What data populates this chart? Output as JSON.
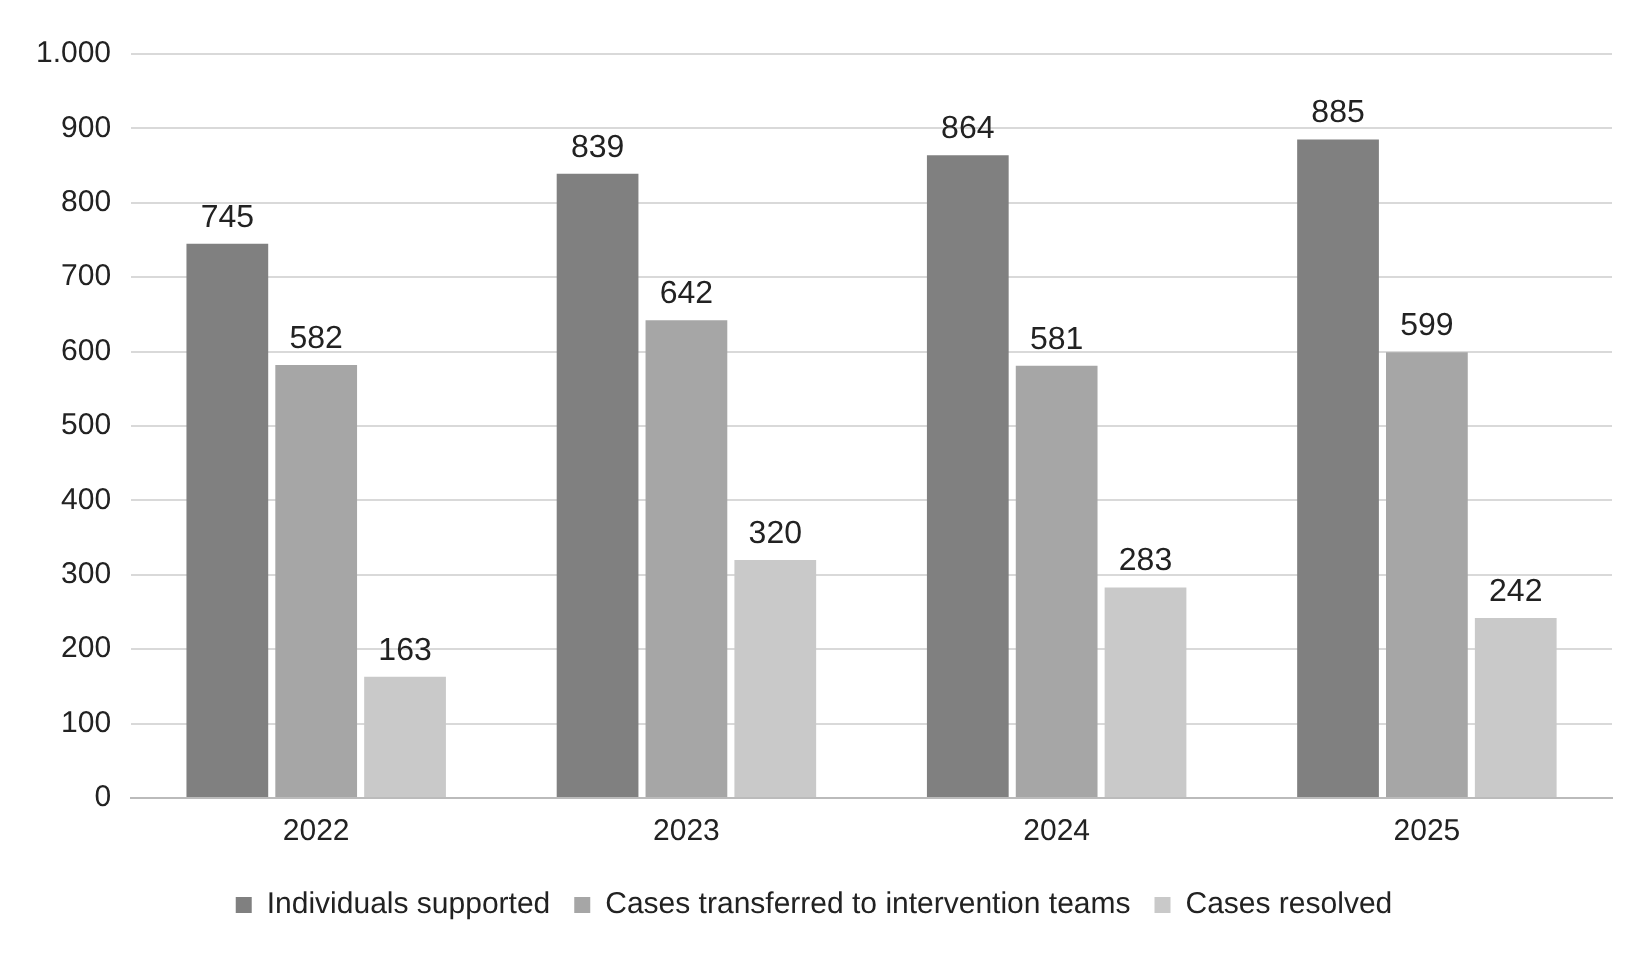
{
  "chart_data": {
    "type": "bar",
    "categories": [
      "2022",
      "2023",
      "2024",
      "2025"
    ],
    "series": [
      {
        "name": "Individuals supported",
        "color": "#808080",
        "values": [
          745,
          839,
          864,
          885
        ]
      },
      {
        "name": "Cases transferred to intervention teams",
        "color": "#a6a6a6",
        "values": [
          582,
          642,
          581,
          599
        ]
      },
      {
        "name": "Cases resolved",
        "color": "#c9c9c9",
        "values": [
          163,
          320,
          283,
          242
        ]
      }
    ],
    "ylim": [
      0,
      1000
    ],
    "yticks": [
      0,
      100,
      200,
      300,
      400,
      500,
      600,
      700,
      800,
      900,
      {
        "value": 1000,
        "label": "1.000"
      }
    ],
    "grid": "y",
    "legend": "bottom",
    "data_labels": true
  }
}
